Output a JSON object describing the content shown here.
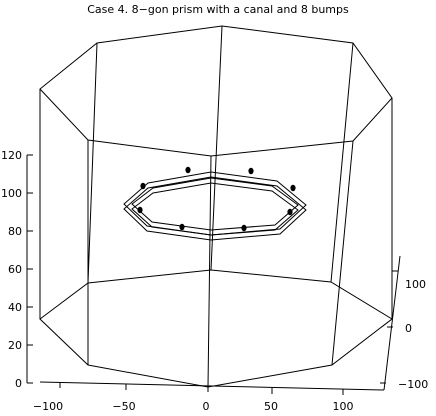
{
  "chart_data": {
    "type": "3d-wireframe",
    "title": "Case 4. 8−gon prism with a canal and 8 bumps",
    "axes": {
      "x": {
        "ticks": [
          "−100",
          "−50",
          "0",
          "50",
          "100"
        ],
        "range": [
          -120,
          120
        ]
      },
      "y": {
        "ticks": [
          "100",
          "0",
          "−100"
        ],
        "range": [
          -120,
          120
        ]
      },
      "z": {
        "ticks": [
          "0",
          "20",
          "40",
          "60",
          "80",
          "100",
          "120"
        ],
        "range": [
          0,
          130
        ]
      }
    },
    "prism": {
      "sides": 8,
      "height": 130,
      "radius": 125
    },
    "canal": {
      "sides": 8,
      "z": 92,
      "outer_radius": 65,
      "inner_radius": 57
    },
    "bumps": {
      "count": 8,
      "z": 99
    }
  }
}
